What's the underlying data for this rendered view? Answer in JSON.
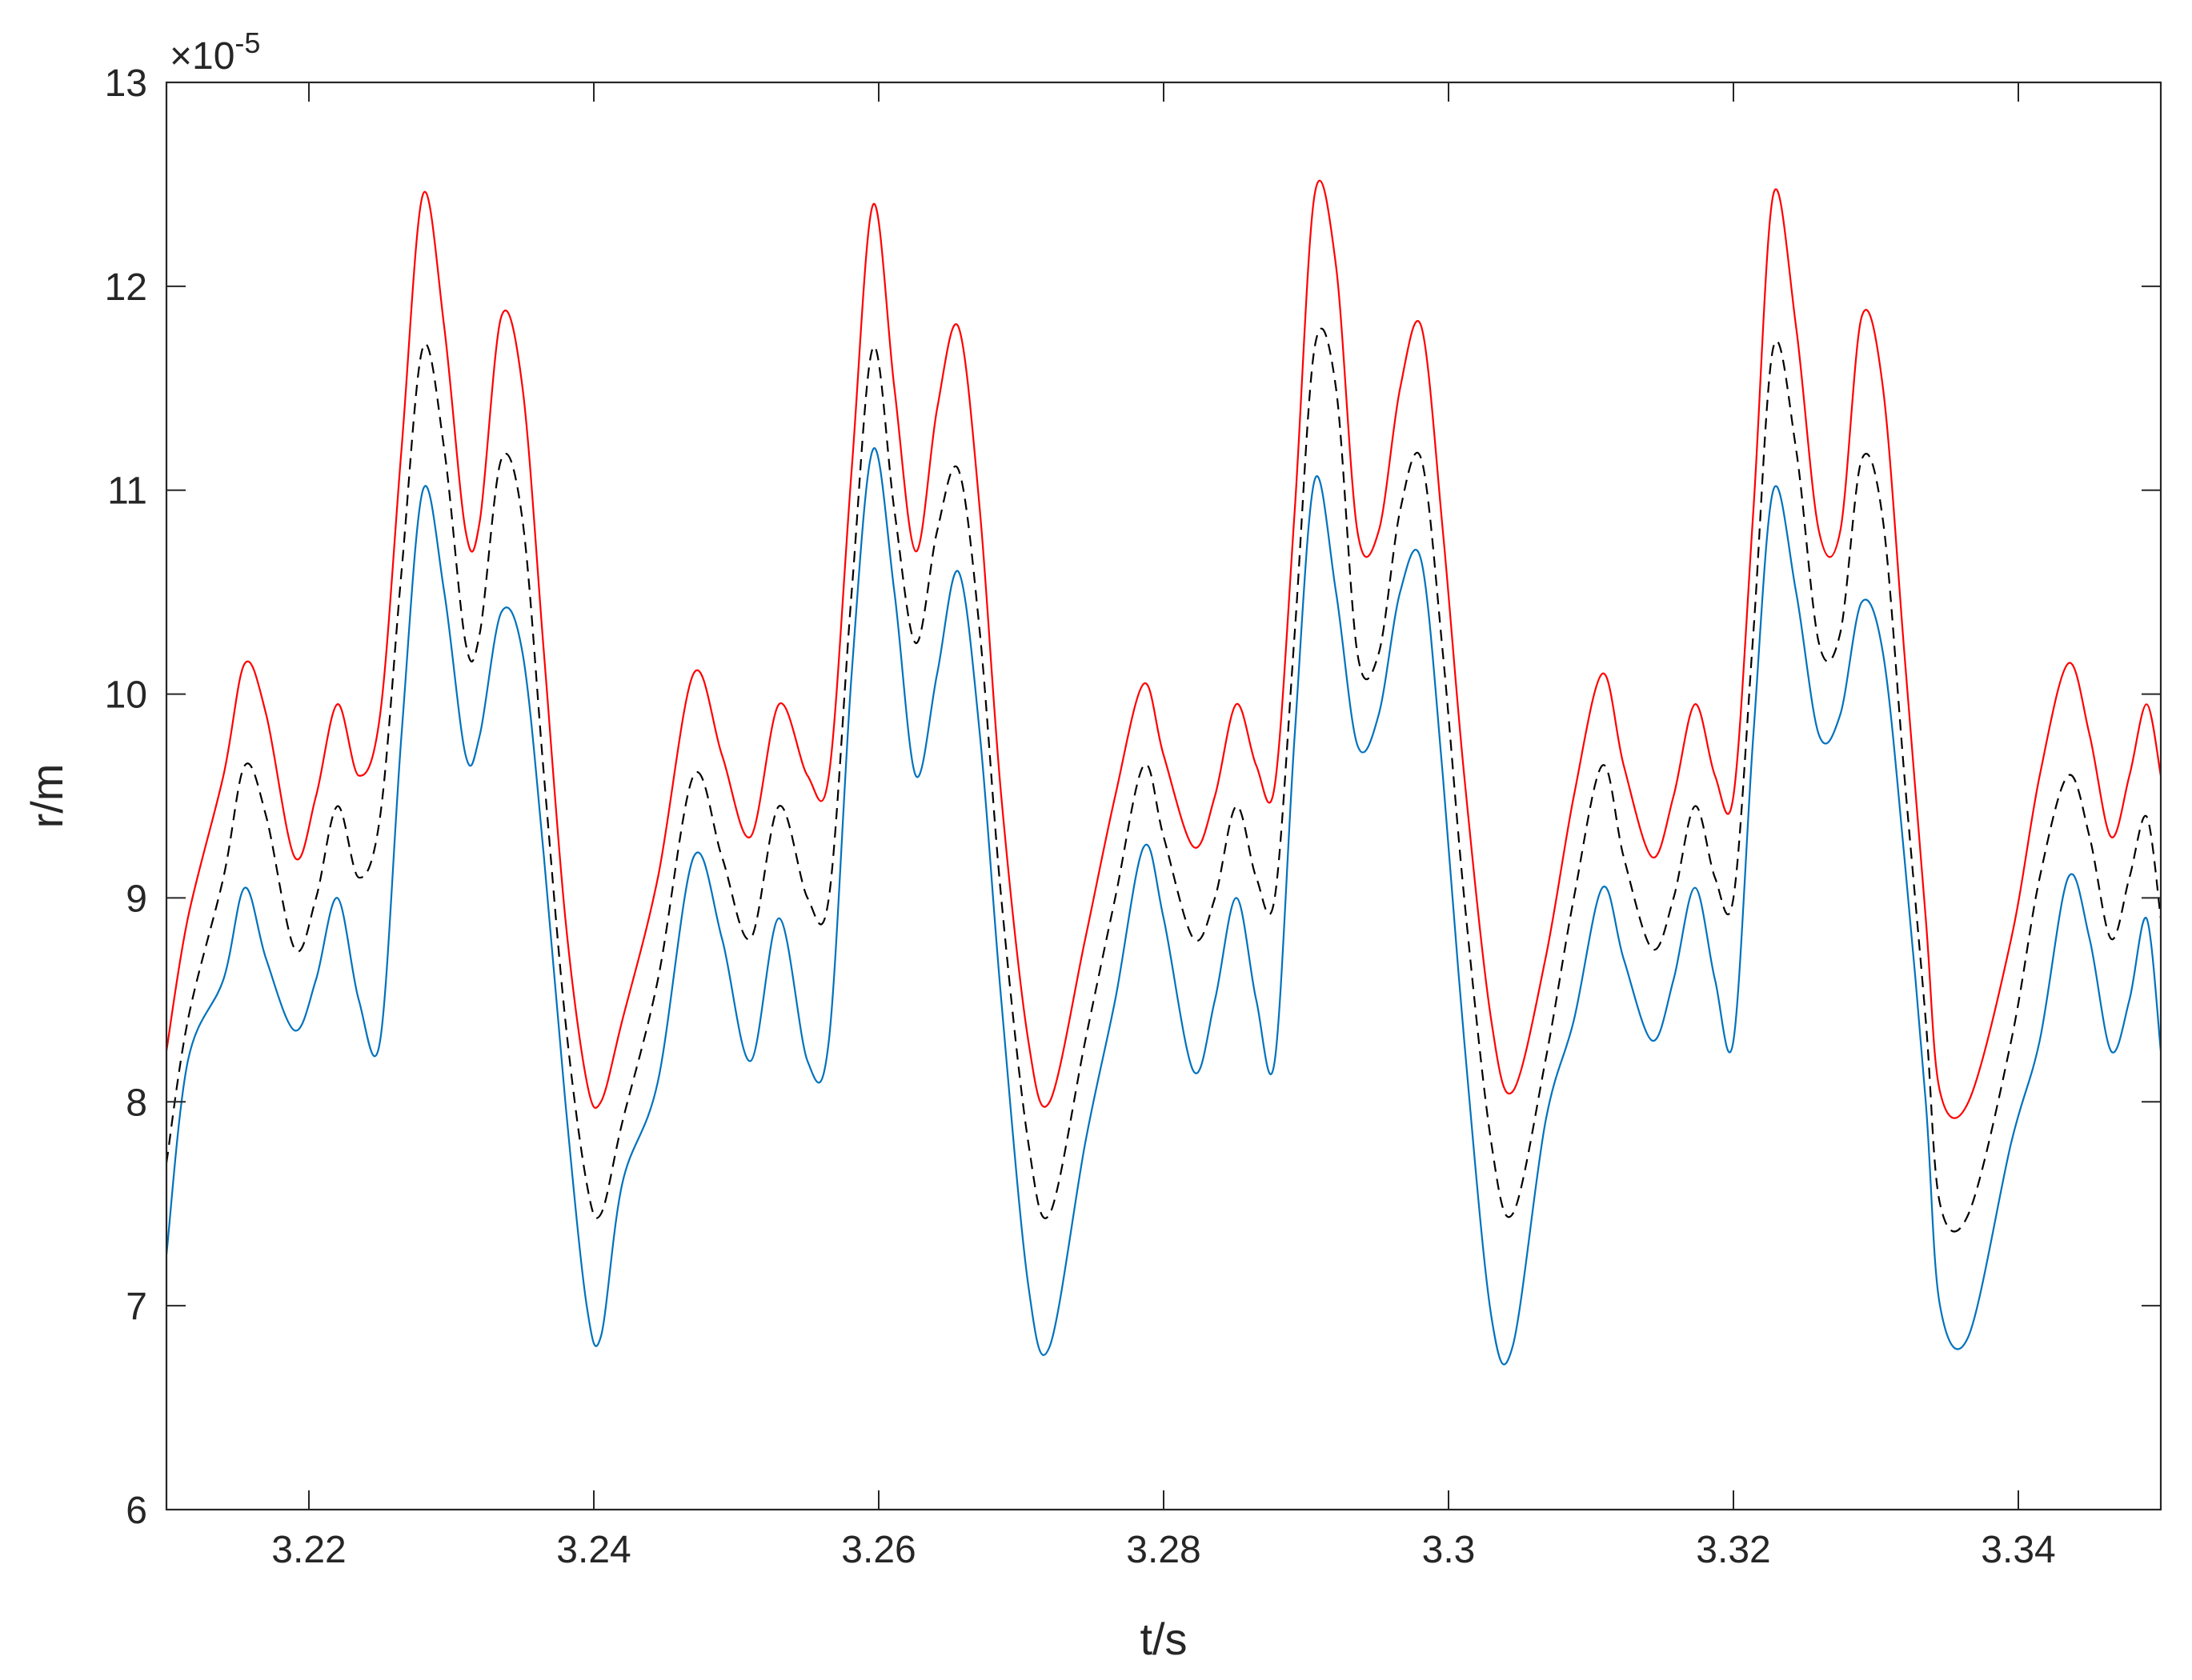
{
  "chart_data": {
    "type": "line",
    "title": "",
    "xlabel": "t/s",
    "ylabel": "r/m",
    "exponent_label": "×10",
    "exponent_power": "-5",
    "xlim": [
      3.21,
      3.35
    ],
    "ylim": [
      6,
      13
    ],
    "x_ticks": [
      3.22,
      3.24,
      3.26,
      3.28,
      3.3,
      3.32,
      3.34
    ],
    "x_tick_labels": [
      "3.22",
      "3.24",
      "3.26",
      "3.28",
      "3.3",
      "3.32",
      "3.34"
    ],
    "y_ticks": [
      6,
      7,
      8,
      9,
      10,
      11,
      12,
      13
    ],
    "y_tick_labels": [
      "6",
      "7",
      "8",
      "9",
      "10",
      "11",
      "12",
      "13"
    ],
    "grid": false,
    "legend": "none",
    "series": [
      {
        "color": "#ff0000",
        "dash": "solid",
        "x": [
          3.21,
          3.2115,
          3.214,
          3.2155,
          3.217,
          3.219,
          3.2205,
          3.222,
          3.2235,
          3.225,
          3.2265,
          3.228,
          3.2295,
          3.231,
          3.232,
          3.2335,
          3.235,
          3.2365,
          3.238,
          3.2395,
          3.2405,
          3.242,
          3.2445,
          3.247,
          3.249,
          3.251,
          3.253,
          3.255,
          3.2565,
          3.2581,
          3.2596,
          3.2611,
          3.2626,
          3.2641,
          3.2656,
          3.2671,
          3.2686,
          3.2705,
          3.272,
          3.2745,
          3.2766,
          3.2786,
          3.28,
          3.2821,
          3.2836,
          3.2851,
          3.2865,
          3.2878,
          3.2892,
          3.2906,
          3.2921,
          3.2936,
          3.2951,
          3.2966,
          3.2981,
          3.2996,
          3.3011,
          3.303,
          3.3045,
          3.3068,
          3.3088,
          3.3108,
          3.3123,
          3.3143,
          3.3158,
          3.3173,
          3.3187,
          3.32,
          3.3214,
          3.3228,
          3.3244,
          3.326,
          3.3275,
          3.329,
          3.3305,
          3.332,
          3.3335,
          3.3345,
          3.3365,
          3.3395,
          3.3415,
          3.3435,
          3.345,
          3.3465,
          3.3478,
          3.349,
          3.35
        ],
        "y": [
          8.25,
          8.9,
          9.6,
          10.15,
          9.9,
          9.2,
          9.5,
          9.95,
          9.6,
          9.9,
          11.2,
          12.45,
          11.8,
          10.8,
          10.85,
          11.85,
          11.5,
          10.2,
          8.9,
          8.1,
          8.0,
          8.4,
          9.1,
          10.1,
          9.7,
          9.3,
          9.95,
          9.6,
          9.6,
          11.1,
          12.4,
          11.5,
          10.7,
          11.4,
          11.8,
          10.9,
          9.5,
          8.3,
          8.0,
          8.8,
          9.5,
          10.05,
          9.7,
          9.25,
          9.5,
          9.95,
          9.65,
          9.55,
          10.9,
          12.45,
          12.1,
          10.8,
          10.8,
          11.5,
          11.8,
          10.8,
          9.6,
          8.4,
          8.05,
          8.7,
          9.5,
          10.1,
          9.65,
          9.2,
          9.5,
          9.95,
          9.6,
          9.5,
          10.9,
          12.45,
          11.8,
          10.8,
          10.8,
          11.85,
          11.5,
          10.2,
          8.9,
          8.05,
          8.0,
          8.8,
          9.6,
          10.15,
          9.8,
          9.3,
          9.6,
          9.95,
          9.6
        ]
      },
      {
        "color": "#000000",
        "dash": "dashed",
        "x": [
          3.21,
          3.2115,
          3.214,
          3.2155,
          3.217,
          3.219,
          3.2205,
          3.222,
          3.2235,
          3.225,
          3.2265,
          3.228,
          3.2295,
          3.231,
          3.232,
          3.2335,
          3.235,
          3.2365,
          3.238,
          3.2395,
          3.2405,
          3.242,
          3.2445,
          3.247,
          3.249,
          3.251,
          3.253,
          3.255,
          3.2565,
          3.2581,
          3.2596,
          3.2611,
          3.2626,
          3.2641,
          3.2656,
          3.2671,
          3.2686,
          3.2705,
          3.272,
          3.2745,
          3.2766,
          3.2786,
          3.28,
          3.2821,
          3.2836,
          3.2851,
          3.2865,
          3.2878,
          3.2892,
          3.2906,
          3.2921,
          3.2936,
          3.2951,
          3.2966,
          3.2981,
          3.2996,
          3.3011,
          3.303,
          3.3045,
          3.3068,
          3.3088,
          3.3108,
          3.3123,
          3.3143,
          3.3158,
          3.3173,
          3.3187,
          3.32,
          3.3214,
          3.3228,
          3.3244,
          3.326,
          3.3275,
          3.329,
          3.3305,
          3.332,
          3.3335,
          3.3345,
          3.3365,
          3.3395,
          3.3415,
          3.3435,
          3.345,
          3.3465,
          3.3478,
          3.349,
          3.35
        ],
        "y": [
          7.7,
          8.4,
          9.1,
          9.65,
          9.4,
          8.75,
          9.0,
          9.45,
          9.1,
          9.4,
          10.6,
          11.7,
          11.2,
          10.25,
          10.3,
          11.15,
          10.85,
          9.6,
          8.4,
          7.6,
          7.45,
          7.9,
          8.6,
          9.6,
          9.2,
          8.8,
          9.45,
          9.0,
          9.0,
          10.5,
          11.7,
          10.9,
          10.25,
          10.8,
          11.1,
          10.3,
          9.0,
          7.8,
          7.45,
          8.3,
          9.0,
          9.65,
          9.3,
          8.8,
          9.0,
          9.45,
          9.1,
          9.0,
          10.3,
          11.7,
          11.5,
          10.2,
          10.2,
          10.9,
          11.15,
          10.2,
          9.0,
          7.8,
          7.45,
          8.2,
          9.0,
          9.65,
          9.2,
          8.75,
          9.0,
          9.45,
          9.1,
          9.0,
          10.3,
          11.7,
          11.2,
          10.25,
          10.3,
          11.15,
          10.85,
          9.6,
          8.4,
          7.5,
          7.45,
          8.3,
          9.1,
          9.6,
          9.3,
          8.8,
          9.1,
          9.4,
          8.9
        ]
      },
      {
        "color": "#0072bd",
        "dash": "solid",
        "x": [
          3.21,
          3.2115,
          3.214,
          3.2155,
          3.217,
          3.219,
          3.2205,
          3.222,
          3.2235,
          3.225,
          3.2265,
          3.228,
          3.2295,
          3.231,
          3.232,
          3.2335,
          3.235,
          3.2365,
          3.238,
          3.2395,
          3.2405,
          3.242,
          3.2445,
          3.247,
          3.249,
          3.251,
          3.253,
          3.255,
          3.2565,
          3.2581,
          3.2596,
          3.2611,
          3.2626,
          3.2641,
          3.2656,
          3.2671,
          3.2686,
          3.2705,
          3.272,
          3.2745,
          3.2766,
          3.2786,
          3.28,
          3.2821,
          3.2836,
          3.2851,
          3.2865,
          3.2878,
          3.2892,
          3.2906,
          3.2921,
          3.2936,
          3.2951,
          3.2966,
          3.2981,
          3.2996,
          3.3011,
          3.303,
          3.3045,
          3.3068,
          3.3088,
          3.3108,
          3.3123,
          3.3143,
          3.3158,
          3.3173,
          3.3187,
          3.32,
          3.3214,
          3.3228,
          3.3244,
          3.326,
          3.3275,
          3.329,
          3.3305,
          3.332,
          3.3335,
          3.3345,
          3.3365,
          3.3395,
          3.3415,
          3.3435,
          3.345,
          3.3465,
          3.3478,
          3.349,
          3.35
        ],
        "y": [
          7.25,
          8.2,
          8.6,
          9.05,
          8.7,
          8.35,
          8.6,
          9.0,
          8.5,
          8.3,
          9.8,
          11.0,
          10.5,
          9.7,
          9.8,
          10.4,
          10.2,
          9.2,
          8.0,
          7.0,
          6.85,
          7.6,
          8.1,
          9.2,
          8.8,
          8.2,
          8.9,
          8.2,
          8.3,
          10.1,
          11.2,
          10.5,
          9.6,
          10.1,
          10.6,
          9.8,
          8.5,
          7.1,
          6.8,
          7.8,
          8.5,
          9.25,
          8.9,
          8.15,
          8.5,
          9.0,
          8.5,
          8.2,
          9.8,
          11.05,
          10.5,
          9.75,
          9.9,
          10.5,
          10.65,
          9.6,
          8.3,
          6.95,
          6.8,
          7.9,
          8.4,
          9.05,
          8.7,
          8.3,
          8.6,
          9.05,
          8.6,
          8.3,
          9.8,
          11.0,
          10.5,
          9.8,
          9.9,
          10.45,
          10.2,
          9.2,
          8.0,
          7.0,
          6.85,
          7.8,
          8.3,
          9.1,
          8.8,
          8.25,
          8.5,
          8.9,
          8.25
        ]
      }
    ]
  }
}
